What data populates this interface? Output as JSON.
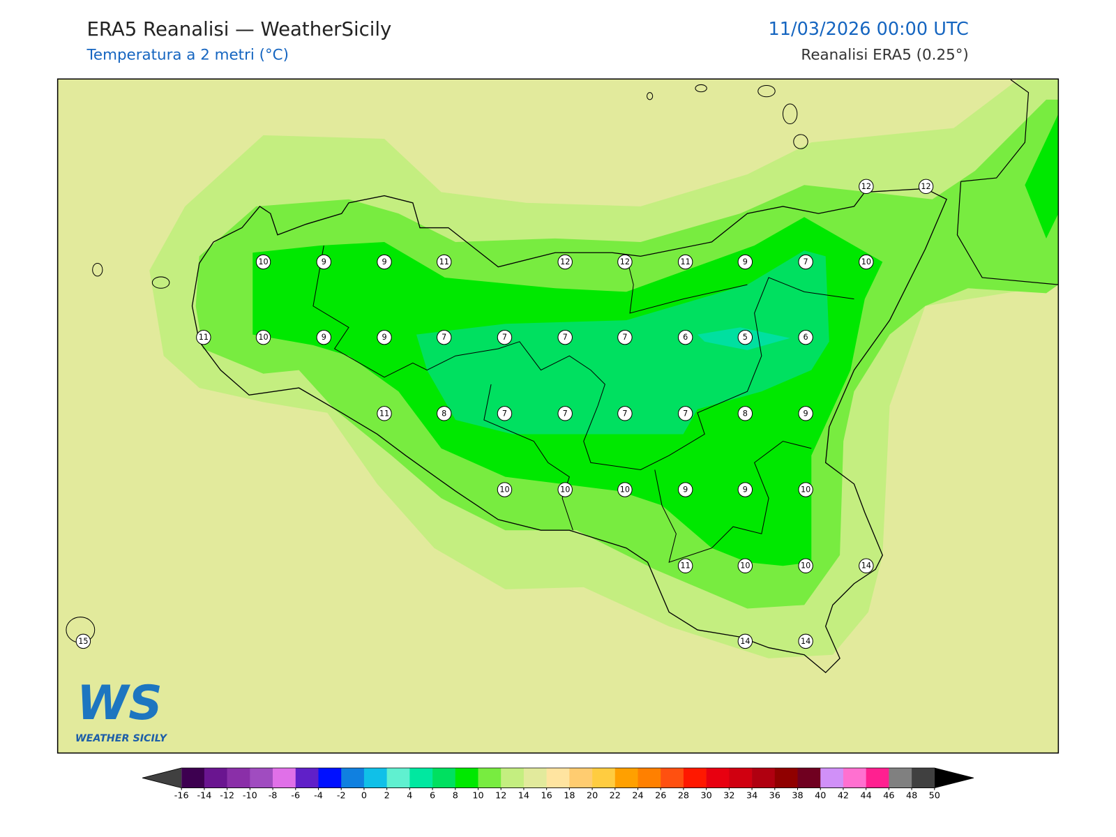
{
  "header": {
    "title": "ERA5 Reanalisi — WeatherSicily",
    "subtitle": "Temperatura a 2 metri (°C)",
    "date": "11/03/2026 00:00 UTC",
    "source": "Reanalisi ERA5 (0.25°)"
  },
  "map": {
    "stations": [
      12,
      12,
      10,
      9,
      9,
      11,
      12,
      12,
      11,
      9,
      7,
      10,
      11,
      10,
      9,
      9,
      7,
      7,
      7,
      7,
      6,
      5,
      6,
      11,
      8,
      7,
      7,
      7,
      7,
      8,
      9,
      10,
      10,
      10,
      9,
      9,
      10,
      11,
      10,
      10,
      14,
      15,
      14,
      14
    ]
  },
  "colorbar": {
    "ticks": [
      -16,
      -14,
      -12,
      -10,
      -8,
      -6,
      -4,
      -2,
      0,
      2,
      4,
      6,
      8,
      10,
      12,
      14,
      16,
      18,
      20,
      22,
      24,
      26,
      28,
      30,
      32,
      34,
      36,
      38,
      40,
      42,
      44,
      46,
      48,
      50
    ],
    "colors": [
      "#3d0050",
      "#6a1590",
      "#8a2fa8",
      "#a04cc0",
      "#e070e8",
      "#6020c8",
      "#0010ff",
      "#1080e0",
      "#10c0e8",
      "#60f0d0",
      "#00e8a0",
      "#00e060",
      "#00e800",
      "#78ec40",
      "#c4ee80",
      "#e2ea9c",
      "#ffe4a0",
      "#ffcc70",
      "#ffcc40",
      "#ffa000",
      "#ff8000",
      "#ff5010",
      "#ff1800",
      "#e80010",
      "#d00010",
      "#b00010",
      "#900000",
      "#700020",
      "#d090f8",
      "#ff70d0",
      "#ff2090",
      "#808080",
      "#404040"
    ],
    "under_color": "#404040",
    "over_color": "#000000"
  },
  "logo": {
    "text": "WS",
    "subtext": "WEATHER SICILY"
  }
}
